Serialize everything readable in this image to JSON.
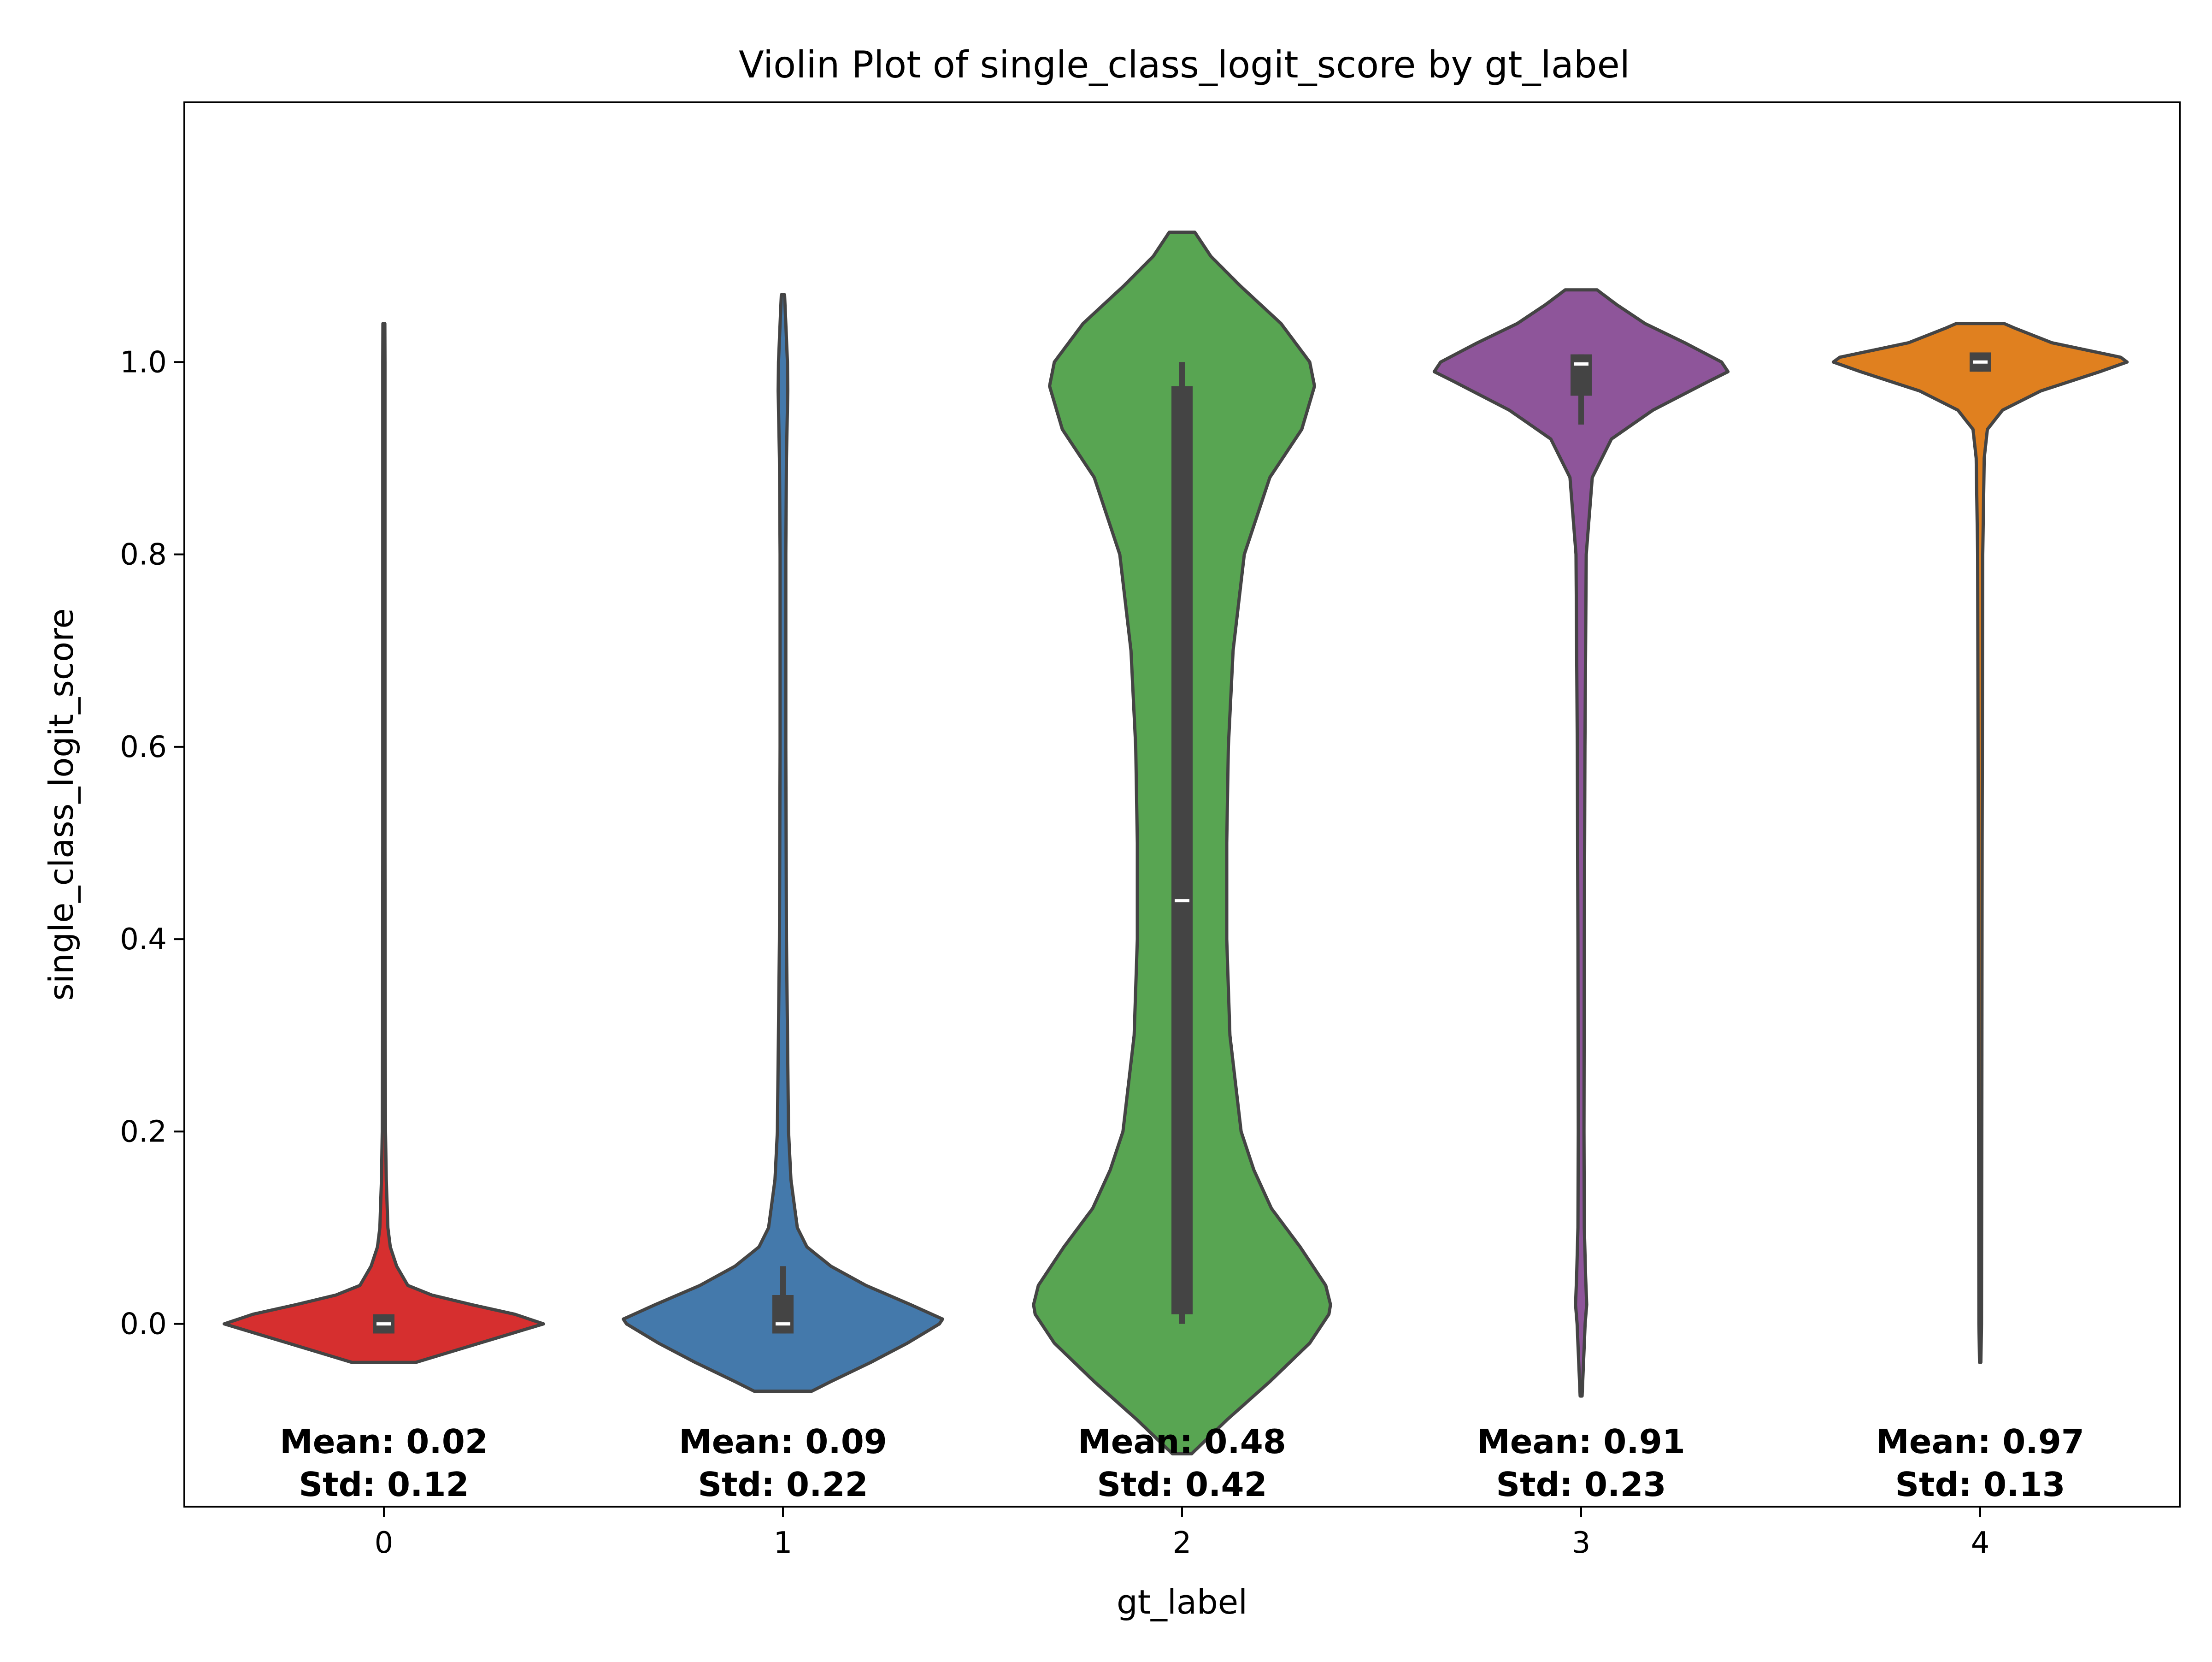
{
  "chart_data": {
    "type": "violin",
    "title": "Violin Plot of single_class_logit_score by gt_label",
    "xlabel": "gt_label",
    "ylabel": "single_class_logit_score",
    "categories": [
      "0",
      "1",
      "2",
      "3",
      "4"
    ],
    "ylim": [
      -0.19,
      1.27
    ],
    "yticks": [
      0.0,
      0.2,
      0.4,
      0.6,
      0.8,
      1.0
    ],
    "ytick_labels": [
      "0.0",
      "0.2",
      "0.4",
      "0.6",
      "0.8",
      "1.0"
    ],
    "grid": false,
    "colors": [
      "#d62f2f",
      "#4479ab",
      "#58a552",
      "#8e559a",
      "#e0801f"
    ],
    "violins": [
      {
        "category": "0",
        "color": "#d62f2f",
        "min": -0.04,
        "max": 1.04,
        "q1": -0.01,
        "median": 0.0,
        "q3": 0.01,
        "whisker_low": -0.01,
        "whisker_high": 0.01,
        "density": [
          [
            -0.04,
            0.2
          ],
          [
            -0.03,
            0.4
          ],
          [
            -0.02,
            0.6
          ],
          [
            -0.01,
            0.8
          ],
          [
            0.0,
            1.0
          ],
          [
            0.01,
            0.82
          ],
          [
            0.02,
            0.55
          ],
          [
            0.03,
            0.3
          ],
          [
            0.04,
            0.15
          ],
          [
            0.06,
            0.08
          ],
          [
            0.08,
            0.04
          ],
          [
            0.1,
            0.025
          ],
          [
            0.15,
            0.015
          ],
          [
            0.2,
            0.01
          ],
          [
            0.3,
            0.008
          ],
          [
            0.5,
            0.007
          ],
          [
            0.8,
            0.007
          ],
          [
            1.0,
            0.007
          ],
          [
            1.04,
            0.006
          ]
        ],
        "mean": 0.02,
        "std": 0.12,
        "mean_label": "Mean: 0.02",
        "std_label": "Std: 0.12"
      },
      {
        "category": "1",
        "color": "#4479ab",
        "min": -0.07,
        "max": 1.07,
        "q1": -0.01,
        "median": 0.0,
        "q3": 0.03,
        "whisker_low": -0.01,
        "whisker_high": 0.06,
        "density": [
          [
            -0.07,
            0.18
          ],
          [
            -0.06,
            0.3
          ],
          [
            -0.04,
            0.55
          ],
          [
            -0.02,
            0.78
          ],
          [
            0.0,
            0.98
          ],
          [
            0.005,
            1.0
          ],
          [
            0.02,
            0.8
          ],
          [
            0.04,
            0.52
          ],
          [
            0.06,
            0.3
          ],
          [
            0.08,
            0.15
          ],
          [
            0.1,
            0.09
          ],
          [
            0.15,
            0.05
          ],
          [
            0.2,
            0.035
          ],
          [
            0.4,
            0.022
          ],
          [
            0.6,
            0.018
          ],
          [
            0.8,
            0.018
          ],
          [
            0.9,
            0.022
          ],
          [
            0.97,
            0.03
          ],
          [
            1.0,
            0.028
          ],
          [
            1.04,
            0.018
          ],
          [
            1.07,
            0.01
          ]
        ],
        "mean": 0.09,
        "std": 0.22,
        "mean_label": "Mean: 0.09",
        "std_label": "Std: 0.22"
      },
      {
        "category": "2",
        "color": "#58a552",
        "min": -0.135,
        "max": 1.135,
        "q1": 0.01,
        "median": 0.44,
        "q3": 0.975,
        "whisker_low": 0.0,
        "whisker_high": 1.0,
        "density": [
          [
            -0.135,
            0.06
          ],
          [
            -0.1,
            0.28
          ],
          [
            -0.06,
            0.55
          ],
          [
            -0.02,
            0.8
          ],
          [
            0.01,
            0.92
          ],
          [
            0.02,
            0.93
          ],
          [
            0.04,
            0.9
          ],
          [
            0.08,
            0.74
          ],
          [
            0.12,
            0.56
          ],
          [
            0.16,
            0.45
          ],
          [
            0.2,
            0.37
          ],
          [
            0.3,
            0.3
          ],
          [
            0.4,
            0.28
          ],
          [
            0.5,
            0.28
          ],
          [
            0.6,
            0.29
          ],
          [
            0.7,
            0.32
          ],
          [
            0.8,
            0.39
          ],
          [
            0.88,
            0.55
          ],
          [
            0.93,
            0.75
          ],
          [
            0.975,
            0.83
          ],
          [
            1.0,
            0.8
          ],
          [
            1.04,
            0.62
          ],
          [
            1.08,
            0.36
          ],
          [
            1.11,
            0.18
          ],
          [
            1.135,
            0.08
          ]
        ],
        "mean": 0.48,
        "std": 0.42,
        "mean_label": "Mean: 0.48",
        "std_label": "Std: 0.42"
      },
      {
        "category": "3",
        "color": "#8e559a",
        "min": -0.075,
        "max": 1.075,
        "q1": 0.965,
        "median": 0.998,
        "q3": 1.008,
        "whisker_low": 0.935,
        "whisker_high": 1.008,
        "density": [
          [
            -0.075,
            0.006
          ],
          [
            -0.04,
            0.015
          ],
          [
            0.0,
            0.025
          ],
          [
            0.02,
            0.035
          ],
          [
            0.05,
            0.028
          ],
          [
            0.1,
            0.02
          ],
          [
            0.2,
            0.018
          ],
          [
            0.4,
            0.02
          ],
          [
            0.6,
            0.024
          ],
          [
            0.8,
            0.032
          ],
          [
            0.88,
            0.07
          ],
          [
            0.92,
            0.19
          ],
          [
            0.95,
            0.45
          ],
          [
            0.98,
            0.8
          ],
          [
            0.99,
            0.92
          ],
          [
            1.0,
            0.88
          ],
          [
            1.02,
            0.65
          ],
          [
            1.04,
            0.4
          ],
          [
            1.06,
            0.22
          ],
          [
            1.075,
            0.1
          ]
        ],
        "mean": 0.91,
        "std": 0.23,
        "mean_label": "Mean: 0.91",
        "std_label": "Std: 0.23"
      },
      {
        "category": "4",
        "color": "#e0801f",
        "min": -0.04,
        "max": 1.04,
        "q1": 0.99,
        "median": 1.0,
        "q3": 1.01,
        "whisker_low": 0.99,
        "whisker_high": 1.01,
        "density": [
          [
            -0.04,
            0.004
          ],
          [
            0.0,
            0.008
          ],
          [
            0.2,
            0.01
          ],
          [
            0.5,
            0.012
          ],
          [
            0.8,
            0.016
          ],
          [
            0.9,
            0.025
          ],
          [
            0.93,
            0.045
          ],
          [
            0.95,
            0.14
          ],
          [
            0.97,
            0.38
          ],
          [
            0.99,
            0.75
          ],
          [
            1.0,
            0.92
          ],
          [
            1.005,
            0.88
          ],
          [
            1.02,
            0.45
          ],
          [
            1.035,
            0.22
          ],
          [
            1.04,
            0.15
          ]
        ],
        "mean": 0.97,
        "std": 0.13,
        "mean_label": "Mean: 0.97",
        "std_label": "Std: 0.13"
      }
    ]
  }
}
